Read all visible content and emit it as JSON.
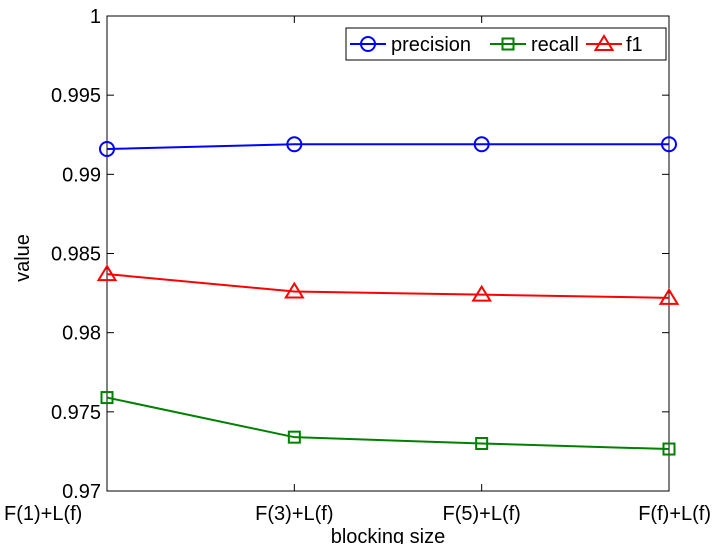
{
  "chart_data": {
    "type": "line",
    "title": "",
    "xlabel": "blocking size",
    "ylabel": "value",
    "categories": [
      "F(1)+L(f)",
      "F(3)+L(f)",
      "F(5)+L(f)",
      "F(f)+L(f)"
    ],
    "ylim": [
      0.97,
      1
    ],
    "yticks": [
      "0.97",
      "0.975",
      "0.98",
      "0.985",
      "0.99",
      "0.995",
      "1"
    ],
    "grid": false,
    "legend_position": "top-right",
    "series": [
      {
        "name": "precision",
        "values": [
          0.9916,
          0.9919,
          0.9919,
          0.9919
        ],
        "color": "#0000ff",
        "marker": "circle"
      },
      {
        "name": "recall",
        "values": [
          0.9759,
          0.9734,
          0.973,
          0.97265
        ],
        "color": "#008000",
        "marker": "square"
      },
      {
        "name": "f1",
        "values": [
          0.9837,
          0.9826,
          0.9824,
          0.9822
        ],
        "color": "#ff0000",
        "marker": "triangle"
      }
    ]
  }
}
